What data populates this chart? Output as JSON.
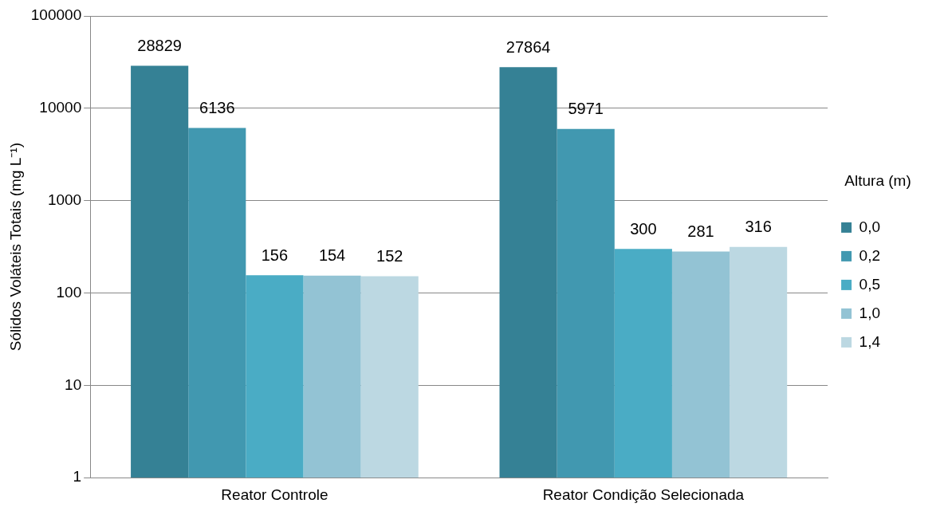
{
  "chart_data": {
    "type": "bar",
    "ylabel": "Sólidos Voláteis Totais (mg L⁻¹)",
    "legend_title": "Altura (m)",
    "categories": [
      "Reator Controle",
      "Reator Condição Selecionada"
    ],
    "series": [
      {
        "name": "0,0",
        "color": "#358195",
        "values": [
          28829,
          27864
        ]
      },
      {
        "name": "0,2",
        "color": "#4198b0",
        "values": [
          6136,
          5971
        ]
      },
      {
        "name": "0,5",
        "color": "#4aacc5",
        "values": [
          156,
          300
        ]
      },
      {
        "name": "1,0",
        "color": "#93c3d4",
        "values": [
          154,
          281
        ]
      },
      {
        "name": "1,4",
        "color": "#bcd8e2",
        "values": [
          152,
          316
        ]
      }
    ],
    "log": true,
    "ylim": [
      1,
      100000
    ],
    "yticks": [
      1,
      10,
      100,
      1000,
      10000,
      100000
    ],
    "grid": "y",
    "legend": "right",
    "data_labels": true
  }
}
